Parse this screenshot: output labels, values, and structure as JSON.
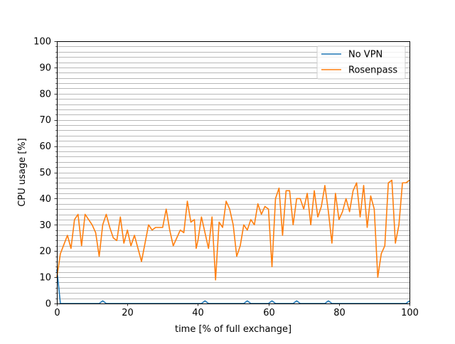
{
  "chart_data": {
    "type": "line",
    "title": "",
    "xlabel": "time [% of full exchange]",
    "ylabel": "CPU usage [%]",
    "xlim": [
      0,
      100
    ],
    "ylim": [
      0,
      100
    ],
    "x_ticks": [
      0,
      20,
      40,
      60,
      80,
      100
    ],
    "y_ticks": [
      0,
      10,
      20,
      30,
      40,
      50,
      60,
      70,
      80,
      90,
      100
    ],
    "y_minor_step": 2,
    "grid": "horizontal minor lines",
    "legend": "top-right",
    "series": [
      {
        "name": "No VPN",
        "color": "#1f77b4",
        "x": [
          0,
          1,
          12,
          13,
          14,
          41,
          42,
          43,
          53,
          54,
          55,
          60,
          61,
          62,
          67,
          68,
          69,
          76,
          77,
          78,
          99,
          100
        ],
        "y": [
          13,
          0,
          0,
          1,
          0,
          0,
          1,
          0,
          0,
          1,
          0,
          0,
          1,
          0,
          0,
          1,
          0,
          0,
          1,
          0,
          0,
          1
        ]
      },
      {
        "name": "Rosenpass",
        "color": "#ff7f0e",
        "x": [
          0,
          1,
          3,
          4,
          5,
          6,
          7,
          8,
          10,
          11,
          12,
          13,
          14,
          15,
          16,
          17,
          18,
          19,
          20,
          21,
          22,
          23,
          24,
          26,
          27,
          28,
          29,
          30,
          31,
          32,
          33,
          34,
          35,
          36,
          37,
          38,
          39,
          39.5,
          40,
          41,
          43,
          44,
          45,
          46,
          47,
          48,
          49,
          50,
          51,
          52,
          53,
          54,
          55,
          56,
          57,
          58,
          59,
          60,
          61,
          62,
          63,
          64,
          65,
          66,
          67,
          68,
          69,
          70,
          71,
          72,
          73,
          74,
          75,
          76,
          77,
          78,
          79,
          80,
          81,
          82,
          83,
          84,
          85,
          86,
          87,
          88,
          89,
          90,
          91,
          92,
          93,
          94,
          95,
          96,
          97,
          98,
          99,
          100
        ],
        "y": [
          10,
          19,
          26,
          21,
          32,
          34,
          22,
          34,
          30,
          27,
          18,
          30,
          34,
          29,
          25,
          24,
          33,
          23,
          28,
          22,
          26,
          21,
          16,
          30,
          28,
          29,
          29,
          29,
          36,
          28,
          22,
          25,
          28,
          27,
          39,
          31,
          32,
          21,
          24,
          33,
          21,
          33,
          9,
          31,
          29,
          39,
          36,
          30,
          18,
          22,
          30,
          28,
          32,
          30,
          38,
          34,
          37,
          36,
          14,
          40,
          44,
          26,
          43,
          43,
          30,
          40,
          40,
          36,
          42,
          30,
          43,
          33,
          37,
          45,
          35,
          23,
          42,
          32,
          35,
          40,
          35,
          43,
          46,
          33,
          45,
          29,
          41,
          36,
          10,
          19,
          22,
          46,
          47,
          23,
          30,
          46,
          46,
          47
        ]
      }
    ]
  }
}
